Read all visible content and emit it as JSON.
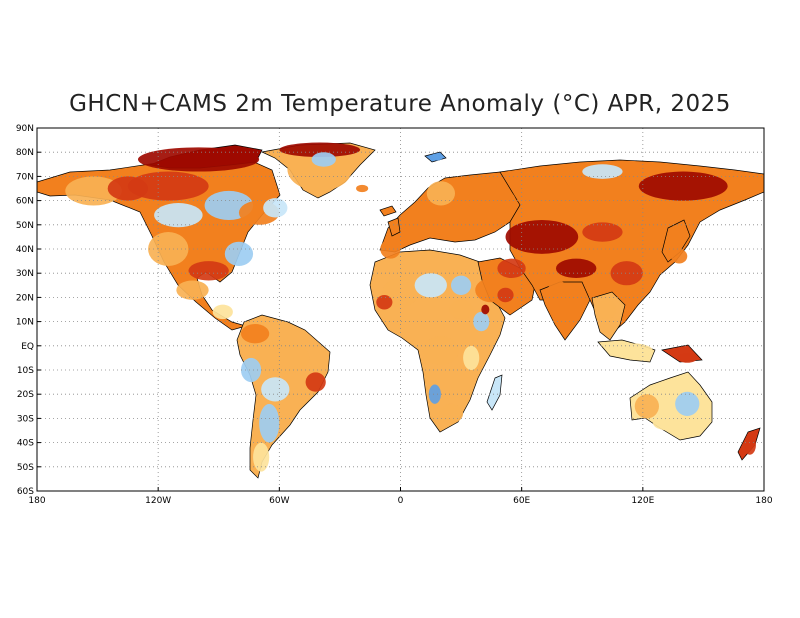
{
  "title": "GHCN+CAMS 2m Temperature Anomaly (°C) APR, 2025",
  "axes": {
    "x_ticks": [
      {
        "value": -180,
        "label": "180"
      },
      {
        "value": -120,
        "label": "120W"
      },
      {
        "value": -60,
        "label": "60W"
      },
      {
        "value": 0,
        "label": "0"
      },
      {
        "value": 60,
        "label": "60E"
      },
      {
        "value": 120,
        "label": "120E"
      },
      {
        "value": 180,
        "label": "180"
      }
    ],
    "y_ticks": [
      {
        "value": 90,
        "label": "90N"
      },
      {
        "value": 80,
        "label": "80N"
      },
      {
        "value": 70,
        "label": "70N"
      },
      {
        "value": 60,
        "label": "60N"
      },
      {
        "value": 50,
        "label": "50N"
      },
      {
        "value": 40,
        "label": "40N"
      },
      {
        "value": 30,
        "label": "30N"
      },
      {
        "value": 20,
        "label": "20N"
      },
      {
        "value": 10,
        "label": "10N"
      },
      {
        "value": 0,
        "label": "EQ"
      },
      {
        "value": -10,
        "label": "10S"
      },
      {
        "value": -20,
        "label": "20S"
      },
      {
        "value": -30,
        "label": "30S"
      },
      {
        "value": -40,
        "label": "40S"
      },
      {
        "value": -50,
        "label": "50S"
      },
      {
        "value": -60,
        "label": "60S"
      }
    ],
    "xlim": [
      -180,
      180
    ],
    "ylim": [
      -60,
      90
    ],
    "grid": true
  },
  "colors": {
    "deep_red": "#9e0a00",
    "red": "#d43a14",
    "orange": "#f2801e",
    "light_orange": "#f9b154",
    "yellow": "#fde39b",
    "pale_blue": "#c8e6f8",
    "light_blue": "#9dcdf2",
    "blue": "#5f9fe4"
  },
  "regions": [
    {
      "name": "alaska",
      "lon": -152,
      "lat": 64,
      "rx": 14,
      "ry": 6,
      "fill": "light_orange"
    },
    {
      "name": "yukon",
      "lon": -135,
      "lat": 65,
      "rx": 10,
      "ry": 5,
      "fill": "red"
    },
    {
      "name": "canadian-arctic",
      "lon": -100,
      "lat": 77,
      "rx": 30,
      "ry": 5,
      "fill": "deep_red"
    },
    {
      "name": "nw-canada",
      "lon": -115,
      "lat": 66,
      "rx": 20,
      "ry": 6,
      "fill": "red"
    },
    {
      "name": "prairies",
      "lon": -110,
      "lat": 54,
      "rx": 12,
      "ry": 5,
      "fill": "pale_blue"
    },
    {
      "name": "hudson",
      "lon": -85,
      "lat": 58,
      "rx": 12,
      "ry": 6,
      "fill": "light_blue"
    },
    {
      "name": "quebec",
      "lon": -70,
      "lat": 55,
      "rx": 10,
      "ry": 5,
      "fill": "orange"
    },
    {
      "name": "labrador",
      "lon": -62,
      "lat": 57,
      "rx": 6,
      "ry": 4,
      "fill": "pale_blue"
    },
    {
      "name": "us-west",
      "lon": -115,
      "lat": 40,
      "rx": 10,
      "ry": 7,
      "fill": "light_orange"
    },
    {
      "name": "us-midwest",
      "lon": -95,
      "lat": 42,
      "rx": 10,
      "ry": 5,
      "fill": "orange"
    },
    {
      "name": "us-east",
      "lon": -80,
      "lat": 38,
      "rx": 7,
      "ry": 5,
      "fill": "light_blue"
    },
    {
      "name": "us-south",
      "lon": -95,
      "lat": 31,
      "rx": 10,
      "ry": 4,
      "fill": "red"
    },
    {
      "name": "mexico",
      "lon": -103,
      "lat": 23,
      "rx": 8,
      "ry": 4,
      "fill": "light_orange"
    },
    {
      "name": "central-america",
      "lon": -88,
      "lat": 14,
      "rx": 5,
      "ry": 3,
      "fill": "yellow"
    },
    {
      "name": "greenland",
      "lon": -40,
      "lat": 73,
      "rx": 16,
      "ry": 9,
      "fill": "light_orange"
    },
    {
      "name": "greenland-north",
      "lon": -40,
      "lat": 81,
      "rx": 20,
      "ry": 3,
      "fill": "deep_red"
    },
    {
      "name": "greenland-core",
      "lon": -38,
      "lat": 77,
      "rx": 6,
      "ry": 3,
      "fill": "light_blue"
    },
    {
      "name": "colombia",
      "lon": -72,
      "lat": 5,
      "rx": 7,
      "ry": 4,
      "fill": "orange"
    },
    {
      "name": "amazon",
      "lon": -60,
      "lat": -5,
      "rx": 15,
      "ry": 7,
      "fill": "light_orange"
    },
    {
      "name": "peru",
      "lon": -74,
      "lat": -10,
      "rx": 5,
      "ry": 5,
      "fill": "light_blue"
    },
    {
      "name": "brazil-east",
      "lon": -42,
      "lat": -15,
      "rx": 5,
      "ry": 4,
      "fill": "red"
    },
    {
      "name": "bolivia",
      "lon": -62,
      "lat": -18,
      "rx": 7,
      "ry": 5,
      "fill": "pale_blue"
    },
    {
      "name": "argentina",
      "lon": -65,
      "lat": -32,
      "rx": 5,
      "ry": 8,
      "fill": "light_blue"
    },
    {
      "name": "patagonia",
      "lon": -69,
      "lat": -46,
      "rx": 4,
      "ry": 6,
      "fill": "yellow"
    },
    {
      "name": "iberia",
      "lon": -5,
      "lat": 40,
      "rx": 5,
      "ry": 4,
      "fill": "orange"
    },
    {
      "name": "europe",
      "lon": 15,
      "lat": 50,
      "rx": 12,
      "ry": 5,
      "fill": "orange"
    },
    {
      "name": "scandinavia",
      "lon": 20,
      "lat": 63,
      "rx": 7,
      "ry": 5,
      "fill": "light_orange"
    },
    {
      "name": "russia-west",
      "lon": 45,
      "lat": 60,
      "rx": 12,
      "ry": 6,
      "fill": "orange"
    },
    {
      "name": "sahara-west",
      "lon": 0,
      "lat": 22,
      "rx": 9,
      "ry": 6,
      "fill": "light_orange"
    },
    {
      "name": "sahel-west",
      "lon": -8,
      "lat": 18,
      "rx": 4,
      "ry": 3,
      "fill": "red"
    },
    {
      "name": "sahara-central",
      "lon": 15,
      "lat": 25,
      "rx": 8,
      "ry": 5,
      "fill": "pale_blue"
    },
    {
      "name": "egypt",
      "lon": 30,
      "lat": 25,
      "rx": 5,
      "ry": 4,
      "fill": "light_blue"
    },
    {
      "name": "sudan",
      "lon": 30,
      "lat": 15,
      "rx": 6,
      "ry": 4,
      "fill": "light_orange"
    },
    {
      "name": "ethiopia",
      "lon": 40,
      "lat": 10,
      "rx": 4,
      "ry": 4,
      "fill": "light_blue"
    },
    {
      "name": "congo",
      "lon": 20,
      "lat": -2,
      "rx": 9,
      "ry": 6,
      "fill": "light_orange"
    },
    {
      "name": "east-africa",
      "lon": 35,
      "lat": -5,
      "rx": 4,
      "ry": 5,
      "fill": "yellow"
    },
    {
      "name": "namibia",
      "lon": 17,
      "lat": -20,
      "rx": 3,
      "ry": 4,
      "fill": "blue"
    },
    {
      "name": "south-africa",
      "lon": 25,
      "lat": -28,
      "rx": 6,
      "ry": 4,
      "fill": "light_orange"
    },
    {
      "name": "arabia",
      "lon": 45,
      "lat": 23,
      "rx": 8,
      "ry": 5,
      "fill": "orange"
    },
    {
      "name": "arabia-east",
      "lon": 52,
      "lat": 21,
      "rx": 4,
      "ry": 3,
      "fill": "red"
    },
    {
      "name": "red-sea",
      "lon": 42,
      "lat": 15,
      "rx": 2,
      "ry": 2,
      "fill": "deep_red"
    },
    {
      "name": "iran",
      "lon": 55,
      "lat": 32,
      "rx": 7,
      "ry": 4,
      "fill": "red"
    },
    {
      "name": "central-asia",
      "lon": 70,
      "lat": 45,
      "rx": 18,
      "ry": 7,
      "fill": "deep_red"
    },
    {
      "name": "tibet",
      "lon": 87,
      "lat": 32,
      "rx": 10,
      "ry": 4,
      "fill": "deep_red"
    },
    {
      "name": "mongolia",
      "lon": 100,
      "lat": 47,
      "rx": 10,
      "ry": 4,
      "fill": "red"
    },
    {
      "name": "siberia-central",
      "lon": 90,
      "lat": 62,
      "rx": 14,
      "ry": 6,
      "fill": "orange"
    },
    {
      "name": "siberia-east",
      "lon": 140,
      "lat": 66,
      "rx": 22,
      "ry": 6,
      "fill": "deep_red"
    },
    {
      "name": "siberia-north",
      "lon": 100,
      "lat": 72,
      "rx": 10,
      "ry": 3,
      "fill": "pale_blue"
    },
    {
      "name": "china-east",
      "lon": 112,
      "lat": 30,
      "rx": 8,
      "ry": 5,
      "fill": "red"
    },
    {
      "name": "india",
      "lon": 78,
      "lat": 20,
      "rx": 6,
      "ry": 7,
      "fill": "orange"
    },
    {
      "name": "se-asia",
      "lon": 102,
      "lat": 15,
      "rx": 5,
      "ry": 4,
      "fill": "light_orange"
    },
    {
      "name": "japan",
      "lon": 138,
      "lat": 37,
      "rx": 4,
      "ry": 3,
      "fill": "orange"
    },
    {
      "name": "indonesia",
      "lon": 115,
      "lat": -2,
      "rx": 10,
      "ry": 3,
      "fill": "yellow"
    },
    {
      "name": "new-guinea",
      "lon": 142,
      "lat": -5,
      "rx": 5,
      "ry": 2,
      "fill": "red"
    },
    {
      "name": "australia-west",
      "lon": 122,
      "lat": -25,
      "rx": 6,
      "ry": 5,
      "fill": "light_orange"
    },
    {
      "name": "australia-east",
      "lon": 142,
      "lat": -24,
      "rx": 6,
      "ry": 5,
      "fill": "light_blue"
    },
    {
      "name": "australia-south",
      "lon": 133,
      "lat": -32,
      "rx": 8,
      "ry": 3,
      "fill": "yellow"
    },
    {
      "name": "new-zealand",
      "lon": 173,
      "lat": -41,
      "rx": 3,
      "ry": 4,
      "fill": "red"
    },
    {
      "name": "iceland",
      "lon": -19,
      "lat": 65,
      "rx": 3,
      "ry": 1.5,
      "fill": "orange"
    },
    {
      "name": "svalbard",
      "lon": 18,
      "lat": 78,
      "rx": 3,
      "ry": 1.5,
      "fill": "blue"
    }
  ]
}
